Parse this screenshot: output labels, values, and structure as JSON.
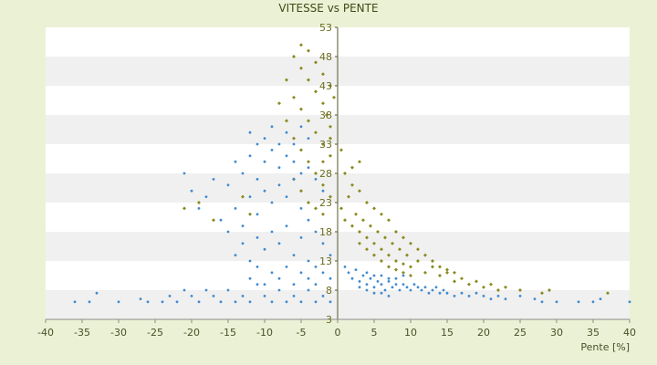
{
  "chart_data": {
    "type": "scatter",
    "title": "VITESSE vs PENTE",
    "xlabel": "Pente [%]",
    "ylabel": "",
    "xlim": [
      -40,
      40
    ],
    "ylim": [
      3,
      53
    ],
    "x_ticks": [
      -40,
      -35,
      -30,
      -25,
      -20,
      -15,
      -10,
      -5,
      0,
      5,
      10,
      15,
      20,
      25,
      30,
      35,
      40
    ],
    "y_ticks": [
      3,
      8,
      13,
      18,
      23,
      28,
      33,
      38,
      43,
      48,
      53
    ],
    "grid": "horizontal alternating bands",
    "legend": "none",
    "series": [
      {
        "color": "#8a8a1e",
        "marker": "small diamond",
        "values": [
          [
            -6,
            48
          ],
          [
            -5,
            46
          ],
          [
            -4,
            44
          ],
          [
            -3,
            42
          ],
          [
            -2,
            40
          ],
          [
            -1.5,
            38
          ],
          [
            -1,
            36
          ],
          [
            -7,
            44
          ],
          [
            -6,
            41
          ],
          [
            -5,
            39
          ],
          [
            -4,
            37
          ],
          [
            -3,
            35
          ],
          [
            -2,
            33
          ],
          [
            -1,
            31
          ],
          [
            -8,
            40
          ],
          [
            -7,
            37
          ],
          [
            -6,
            34
          ],
          [
            -5,
            32
          ],
          [
            -4,
            30
          ],
          [
            -3,
            28
          ],
          [
            -2,
            26
          ],
          [
            -1,
            24
          ],
          [
            -5,
            50
          ],
          [
            -4,
            49
          ],
          [
            -3,
            47
          ],
          [
            -2,
            45
          ],
          [
            -1,
            43
          ],
          [
            -0.5,
            41
          ],
          [
            -6,
            27
          ],
          [
            -5,
            25
          ],
          [
            -4,
            23
          ],
          [
            -3,
            22
          ],
          [
            -2,
            21
          ],
          [
            0.5,
            22
          ],
          [
            1,
            20
          ],
          [
            1.5,
            24
          ],
          [
            2,
            19
          ],
          [
            2.5,
            21
          ],
          [
            3,
            18
          ],
          [
            3.5,
            20
          ],
          [
            4,
            17
          ],
          [
            4.5,
            19
          ],
          [
            5,
            16
          ],
          [
            5.5,
            18
          ],
          [
            6,
            15
          ],
          [
            6.5,
            17
          ],
          [
            7,
            14
          ],
          [
            7.5,
            16
          ],
          [
            8,
            13
          ],
          [
            8.5,
            15
          ],
          [
            9,
            12.5
          ],
          [
            9.5,
            14
          ],
          [
            10,
            12
          ],
          [
            11,
            13
          ],
          [
            12,
            11
          ],
          [
            13,
            12
          ],
          [
            14,
            10.5
          ],
          [
            15,
            11
          ],
          [
            16,
            9.5
          ],
          [
            17,
            10
          ],
          [
            18,
            9
          ],
          [
            19,
            9.5
          ],
          [
            20,
            8.5
          ],
          [
            21,
            9
          ],
          [
            22,
            8
          ],
          [
            23,
            8.5
          ],
          [
            25,
            8
          ],
          [
            28,
            7.5
          ],
          [
            29,
            8
          ],
          [
            37,
            7.5
          ],
          [
            2,
            26
          ],
          [
            3,
            25
          ],
          [
            4,
            23
          ],
          [
            5,
            22
          ],
          [
            6,
            21
          ],
          [
            7,
            20
          ],
          [
            8,
            18
          ],
          [
            9,
            17
          ],
          [
            10,
            16
          ],
          [
            11,
            15
          ],
          [
            12,
            14
          ],
          [
            13,
            13
          ],
          [
            14,
            12
          ],
          [
            15,
            11.5
          ],
          [
            16,
            11
          ],
          [
            1,
            28
          ],
          [
            2,
            29
          ],
          [
            3,
            30
          ],
          [
            0.5,
            32
          ],
          [
            -1,
            34
          ],
          [
            -2,
            30
          ],
          [
            3,
            16
          ],
          [
            4,
            15
          ],
          [
            5,
            14
          ],
          [
            6,
            13
          ],
          [
            7,
            12
          ],
          [
            8,
            11.5
          ],
          [
            9,
            11
          ],
          [
            10,
            10.5
          ],
          [
            -21,
            22
          ],
          [
            -19,
            23
          ],
          [
            -17,
            20
          ],
          [
            -13,
            24
          ],
          [
            -12,
            21
          ]
        ]
      },
      {
        "color": "#3f8ad0",
        "marker": "small dot",
        "values": [
          [
            -36,
            6
          ],
          [
            -34,
            6
          ],
          [
            -33,
            7.5
          ],
          [
            -30,
            6
          ],
          [
            -27,
            6.5
          ],
          [
            -26,
            6
          ],
          [
            -24,
            6
          ],
          [
            -23,
            7
          ],
          [
            -22,
            6
          ],
          [
            -21,
            8
          ],
          [
            -20,
            7
          ],
          [
            -19,
            6
          ],
          [
            -18,
            8
          ],
          [
            -17,
            7
          ],
          [
            -16,
            6
          ],
          [
            -15,
            8
          ],
          [
            -14,
            6
          ],
          [
            -13,
            7
          ],
          [
            -12,
            6
          ],
          [
            -11,
            9
          ],
          [
            -10,
            7
          ],
          [
            -9,
            6
          ],
          [
            -8,
            8
          ],
          [
            -7,
            6
          ],
          [
            -6,
            7
          ],
          [
            -5,
            6
          ],
          [
            -4,
            8
          ],
          [
            -3,
            6
          ],
          [
            -2,
            7
          ],
          [
            -1,
            6
          ],
          [
            -21,
            28
          ],
          [
            -20,
            25
          ],
          [
            -19,
            22
          ],
          [
            -18,
            24
          ],
          [
            -17,
            27
          ],
          [
            -16,
            20
          ],
          [
            -15,
            26
          ],
          [
            -14,
            30
          ],
          [
            -13,
            28
          ],
          [
            -12,
            31
          ],
          [
            -11,
            27
          ],
          [
            -10,
            30
          ],
          [
            -9,
            32
          ],
          [
            -8,
            29
          ],
          [
            -7,
            31
          ],
          [
            -6,
            30
          ],
          [
            -5,
            28
          ],
          [
            -4,
            29
          ],
          [
            -3,
            27
          ],
          [
            -2,
            25
          ],
          [
            -15,
            18
          ],
          [
            -14,
            22
          ],
          [
            -13,
            19
          ],
          [
            -12,
            24
          ],
          [
            -11,
            21
          ],
          [
            -10,
            25
          ],
          [
            -9,
            23
          ],
          [
            -8,
            26
          ],
          [
            -7,
            24
          ],
          [
            -6,
            27
          ],
          [
            -5,
            22
          ],
          [
            -4,
            20
          ],
          [
            -3,
            18
          ],
          [
            -2,
            16
          ],
          [
            -1,
            14
          ],
          [
            -14,
            14
          ],
          [
            -13,
            16
          ],
          [
            -12,
            13
          ],
          [
            -11,
            17
          ],
          [
            -10,
            15
          ],
          [
            -9,
            18
          ],
          [
            -8,
            16
          ],
          [
            -7,
            19
          ],
          [
            -6,
            14
          ],
          [
            -5,
            17
          ],
          [
            -4,
            13
          ],
          [
            -3,
            12
          ],
          [
            -2,
            11
          ],
          [
            -1,
            10
          ],
          [
            -12,
            10
          ],
          [
            -11,
            12
          ],
          [
            -10,
            9
          ],
          [
            -9,
            11
          ],
          [
            -8,
            10
          ],
          [
            -7,
            12
          ],
          [
            -6,
            9
          ],
          [
            -5,
            11
          ],
          [
            -4,
            10
          ],
          [
            -3,
            9
          ],
          [
            -10,
            34
          ],
          [
            -9,
            36
          ],
          [
            -8,
            33
          ],
          [
            -7,
            35
          ],
          [
            -6,
            33
          ],
          [
            -5,
            36
          ],
          [
            -4,
            34
          ],
          [
            -11,
            33
          ],
          [
            -12,
            35
          ],
          [
            1,
            12
          ],
          [
            1.5,
            11
          ],
          [
            2,
            10
          ],
          [
            2.5,
            11.5
          ],
          [
            3,
            9.5
          ],
          [
            3.5,
            10.5
          ],
          [
            4,
            9
          ],
          [
            4.5,
            10
          ],
          [
            5,
            8.5
          ],
          [
            5.5,
            9.5
          ],
          [
            6,
            9
          ],
          [
            6.5,
            8
          ],
          [
            7,
            9.5
          ],
          [
            7.5,
            8.5
          ],
          [
            8,
            9
          ],
          [
            8.5,
            8
          ],
          [
            9,
            9
          ],
          [
            9.5,
            8.5
          ],
          [
            10,
            8
          ],
          [
            10.5,
            9
          ],
          [
            11,
            8.5
          ],
          [
            11.5,
            8
          ],
          [
            12,
            8.5
          ],
          [
            12.5,
            7.5
          ],
          [
            13,
            8
          ],
          [
            13.5,
            8.5
          ],
          [
            14,
            7.5
          ],
          [
            14.5,
            8
          ],
          [
            15,
            7.5
          ],
          [
            16,
            7
          ],
          [
            17,
            7.5
          ],
          [
            18,
            7
          ],
          [
            19,
            7.5
          ],
          [
            20,
            7
          ],
          [
            21,
            6.5
          ],
          [
            22,
            7
          ],
          [
            23,
            6.5
          ],
          [
            25,
            7
          ],
          [
            27,
            6.5
          ],
          [
            28,
            6
          ],
          [
            30,
            6
          ],
          [
            33,
            6
          ],
          [
            35,
            6
          ],
          [
            36,
            6.5
          ],
          [
            40,
            6
          ],
          [
            4,
            11
          ],
          [
            5,
            10.5
          ],
          [
            6,
            10.5
          ],
          [
            7,
            10
          ],
          [
            8,
            10
          ],
          [
            9,
            10.5
          ],
          [
            3,
            8.5
          ],
          [
            4,
            8
          ],
          [
            5,
            7.5
          ],
          [
            6,
            7.5
          ],
          [
            7,
            7
          ]
        ]
      }
    ]
  }
}
